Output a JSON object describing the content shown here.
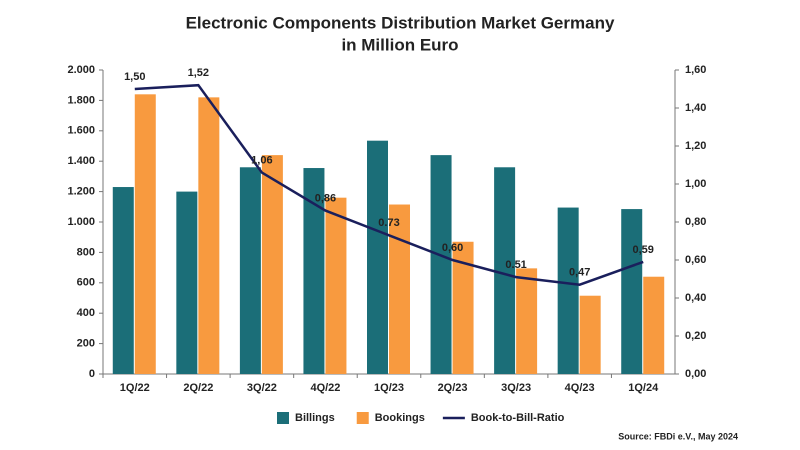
{
  "chart_data": {
    "type": "bar",
    "title": [
      "Electronic Components Distribution Market Germany",
      "in Million Euro"
    ],
    "source": "Source: FBDi e.V., May 2024",
    "categories": [
      "1Q/22",
      "2Q/22",
      "3Q/22",
      "4Q/22",
      "1Q/23",
      "2Q/23",
      "3Q/23",
      "4Q/23",
      "1Q/24"
    ],
    "series": [
      {
        "name": "Billings",
        "color": "#1b6e78",
        "axis": "y",
        "values": [
          1230,
          1200,
          1360,
          1355,
          1535,
          1440,
          1360,
          1095,
          1085
        ]
      },
      {
        "name": "Bookings",
        "color": "#f89a3f",
        "axis": "y",
        "values": [
          1840,
          1820,
          1440,
          1160,
          1115,
          870,
          695,
          515,
          640
        ]
      },
      {
        "name": "Book-to-Bill-Ratio",
        "color": "#1a1f5c",
        "axis": "y2",
        "type": "line",
        "values": [
          1.5,
          1.52,
          1.06,
          0.86,
          0.73,
          0.6,
          0.51,
          0.47,
          0.59
        ],
        "value_labels": [
          "1,50",
          "1,52",
          "1,06",
          "0,86",
          "0.73",
          "0,60",
          "0.51",
          "0,47",
          "0,59"
        ]
      }
    ],
    "ylim": [
      0,
      2000
    ],
    "yticks": [
      0,
      200,
      400,
      600,
      800,
      {
        "value": 1000,
        "label": "1.000"
      },
      {
        "value": 1200,
        "label": "1.200"
      },
      {
        "value": 1400,
        "label": "1.400"
      },
      {
        "value": 1600,
        "label": "1.600"
      },
      {
        "value": 1800,
        "label": "1.800"
      },
      {
        "value": 2000,
        "label": "2.000"
      }
    ],
    "y2lim": [
      0,
      1.6
    ],
    "y2ticks": [
      {
        "value": 0,
        "label": "0,00"
      },
      {
        "value": 0.2,
        "label": "0,20"
      },
      {
        "value": 0.4,
        "label": "0,40"
      },
      {
        "value": 0.6,
        "label": "0,60"
      },
      {
        "value": 0.8,
        "label": "0,80"
      },
      {
        "value": 1.0,
        "label": "1,00"
      },
      {
        "value": 1.2,
        "label": "1,20"
      },
      {
        "value": 1.4,
        "label": "1,40"
      },
      {
        "value": 1.6,
        "label": "1,60"
      }
    ],
    "grid": false
  }
}
